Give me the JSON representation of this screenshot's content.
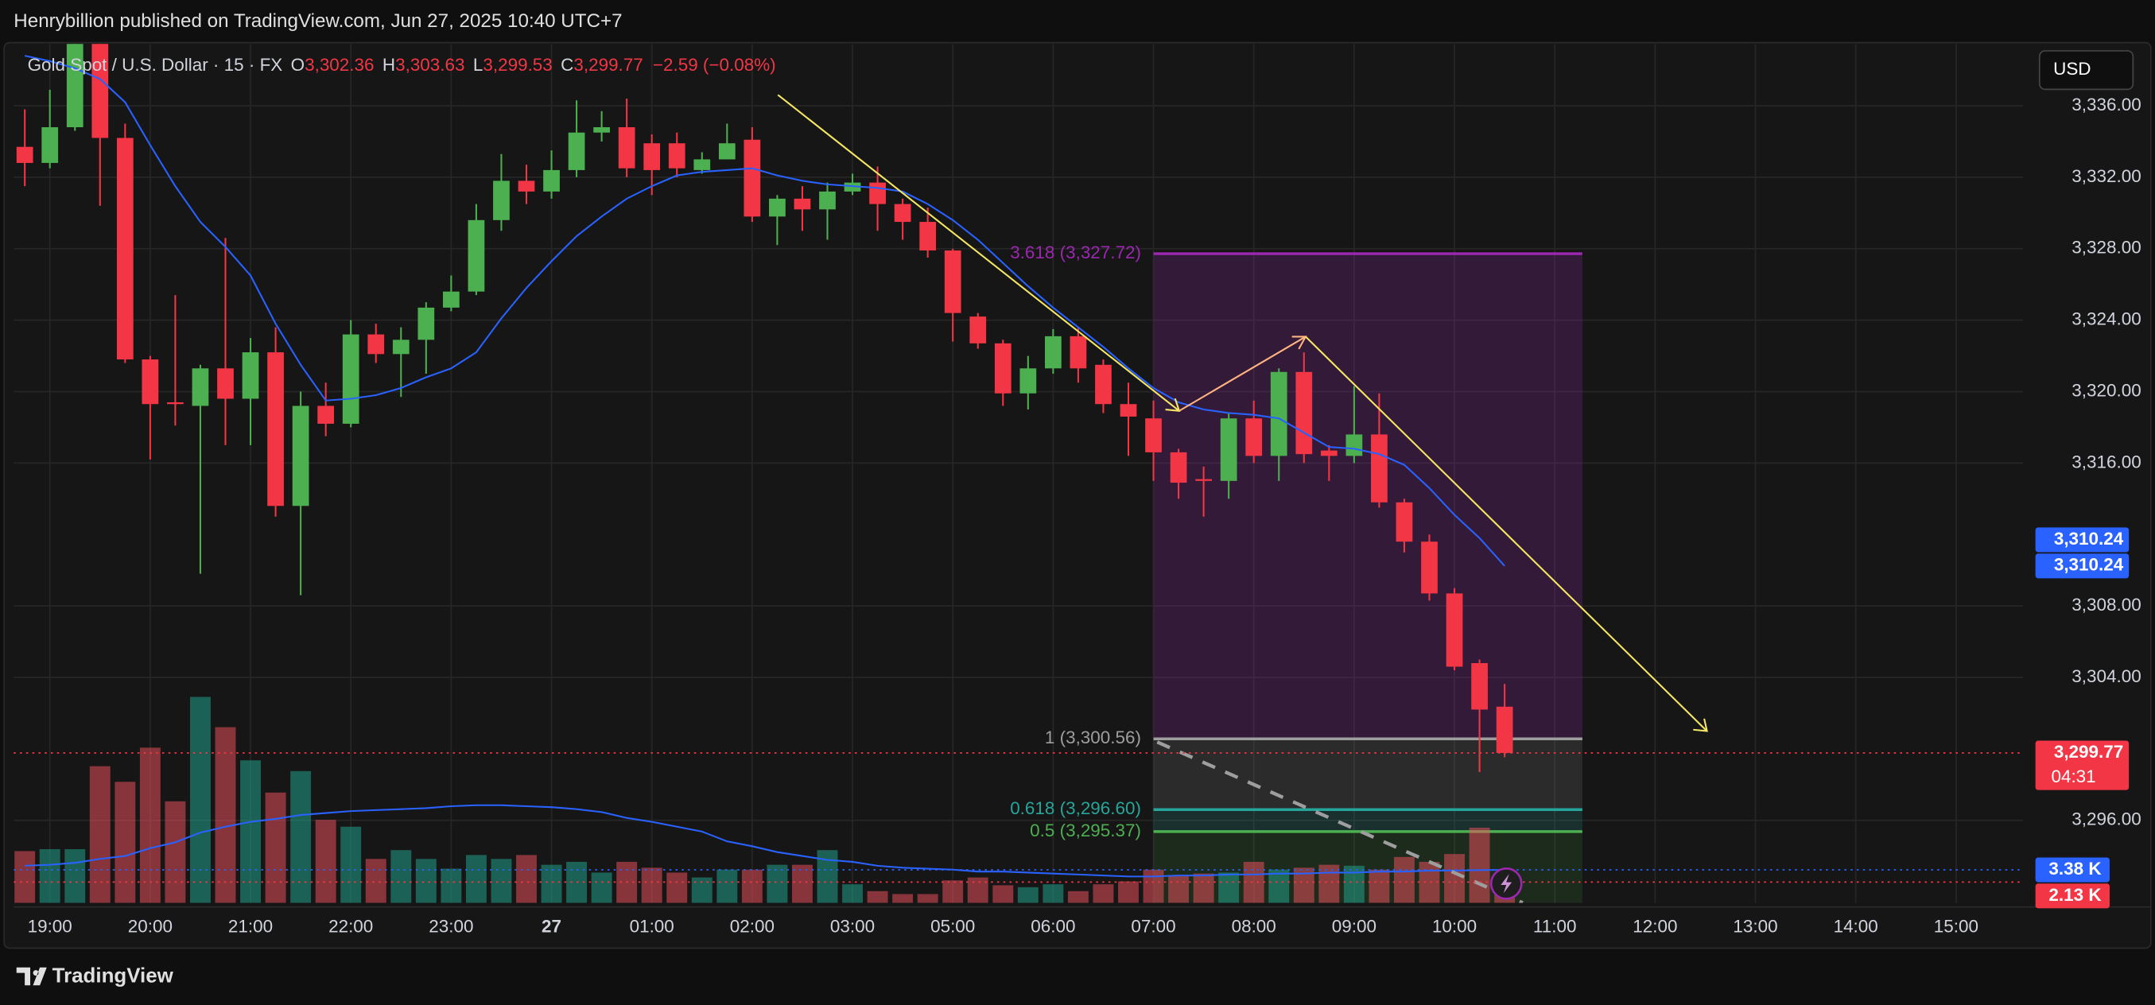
{
  "header": {
    "title": "Henrybillion published on TradingView.com, Jun 27, 2025 10:40 UTC+7"
  },
  "footer": {
    "brand": "TradingView"
  },
  "chart_data": {
    "type": "candlestick",
    "legend": {
      "symbol": "Gold Spot / U.S. Dollar · 15 · FX",
      "items": [
        {
          "key": "O",
          "text": "3,302.36"
        },
        {
          "key": "H",
          "text": "3,303.63"
        },
        {
          "key": "L",
          "text": "3,299.53"
        },
        {
          "key": "C",
          "text": "3,299.77"
        }
      ],
      "change": "−2.59 (−0.08%)"
    },
    "currency": "USD",
    "open": [
      3333.7,
      3332.8,
      3334.8,
      3339.6,
      3334.2,
      3321.8,
      3319.4,
      3319.2,
      3321.3,
      3319.6,
      3322.2,
      3313.6,
      3319.2,
      3318.2,
      3323.2,
      3322.1,
      3322.9,
      3324.7,
      3325.6,
      3329.6,
      3331.8,
      3331.2,
      3332.4,
      3334.5,
      3334.8,
      3333.9,
      3333.9,
      3332.4,
      3333.0,
      3334.1,
      3329.8,
      3330.8,
      3330.2,
      3331.2,
      3331.7,
      3330.5,
      3329.5,
      3327.9,
      3324.2,
      3322.7,
      3319.9,
      3321.3,
      3323.1,
      3321.5,
      3319.3,
      3318.5,
      3316.6,
      3315.1,
      3315.0,
      3318.5,
      3316.4,
      3321.1,
      3316.7,
      3316.4,
      3317.6,
      3313.8,
      3311.6,
      3308.7,
      3304.8,
      3302.36
    ],
    "high": [
      3335.8,
      3336.9,
      3340.2,
      3339.8,
      3335.0,
      3322.0,
      3325.4,
      3321.5,
      3328.6,
      3323.0,
      3323.6,
      3320.0,
      3320.5,
      3324.0,
      3323.8,
      3323.6,
      3325.0,
      3326.5,
      3330.5,
      3333.3,
      3332.7,
      3333.5,
      3336.3,
      3335.7,
      3336.4,
      3334.4,
      3334.5,
      3333.4,
      3335.0,
      3334.8,
      3331.0,
      3331.5,
      3331.7,
      3332.2,
      3332.6,
      3330.8,
      3330.3,
      3328.0,
      3324.4,
      3322.9,
      3322.0,
      3323.5,
      3323.6,
      3321.8,
      3320.5,
      3319.5,
      3316.8,
      3315.8,
      3318.8,
      3319.5,
      3321.3,
      3322.2,
      3317.0,
      3320.3,
      3319.9,
      3314.0,
      3312.0,
      3309.0,
      3305.0,
      3303.63
    ],
    "low": [
      3331.5,
      3332.5,
      3334.6,
      3330.4,
      3321.6,
      3316.2,
      3318.1,
      3309.8,
      3317.0,
      3317.0,
      3313.0,
      3308.6,
      3317.5,
      3318.0,
      3321.6,
      3319.7,
      3321.0,
      3324.5,
      3325.4,
      3329.0,
      3330.5,
      3330.8,
      3332.0,
      3334.0,
      3332.0,
      3331.0,
      3332.0,
      3332.2,
      3333.0,
      3329.5,
      3328.2,
      3329.0,
      3328.5,
      3331.0,
      3329.0,
      3328.5,
      3327.5,
      3322.8,
      3322.4,
      3319.2,
      3319.0,
      3321.0,
      3320.5,
      3318.8,
      3316.4,
      3315.0,
      3314.0,
      3313.0,
      3314.0,
      3316.0,
      3315.0,
      3316.0,
      3315.0,
      3316.0,
      3313.5,
      3311.0,
      3308.3,
      3304.4,
      3298.7,
      3299.53
    ],
    "close": [
      3332.8,
      3334.8,
      3339.6,
      3334.2,
      3321.8,
      3319.3,
      3319.3,
      3321.3,
      3319.6,
      3322.2,
      3313.6,
      3319.2,
      3318.2,
      3323.2,
      3322.1,
      3322.9,
      3324.7,
      3325.6,
      3329.6,
      3331.8,
      3331.2,
      3332.4,
      3334.5,
      3334.8,
      3332.5,
      3332.4,
      3332.5,
      3333.0,
      3333.9,
      3329.8,
      3330.8,
      3330.2,
      3331.2,
      3331.7,
      3330.5,
      3329.5,
      3327.9,
      3324.4,
      3322.7,
      3319.9,
      3321.3,
      3323.1,
      3321.3,
      3319.3,
      3318.6,
      3316.6,
      3314.9,
      3315.0,
      3318.5,
      3316.4,
      3321.1,
      3316.5,
      3316.4,
      3317.6,
      3313.8,
      3311.6,
      3308.7,
      3304.6,
      3302.2,
      3299.77
    ],
    "volume": [
      5.3,
      5.5,
      5.5,
      14.0,
      12.4,
      15.9,
      10.4,
      21.1,
      18.0,
      14.6,
      11.3,
      13.5,
      8.5,
      7.8,
      4.5,
      5.4,
      4.5,
      3.5,
      4.9,
      4.5,
      4.9,
      3.9,
      4.2,
      3.1,
      4.2,
      3.6,
      3.1,
      2.6,
      3.4,
      3.4,
      3.9,
      3.9,
      5.4,
      1.9,
      1.2,
      0.9,
      0.9,
      2.3,
      2.6,
      1.8,
      1.6,
      1.9,
      1.2,
      1.9,
      2.2,
      3.4,
      2.8,
      3.0,
      3.1,
      4.2,
      3.4,
      3.6,
      3.9,
      3.8,
      3.4,
      4.7,
      4.2,
      5.0,
      7.7,
      2.13
    ],
    "ma": {
      "color": "#2962ff",
      "values": [
        3338.8,
        3338.5,
        3338.1,
        3337.5,
        3336.2,
        3333.8,
        3331.5,
        3329.5,
        3328.1,
        3326.5,
        3323.8,
        3321.5,
        3319.5,
        3319.6,
        3319.8,
        3320.2,
        3320.8,
        3321.3,
        3322.2,
        3324.1,
        3325.8,
        3327.3,
        3328.7,
        3329.8,
        3330.8,
        3331.5,
        3332.1,
        3332.3,
        3332.4,
        3332.5,
        3332.1,
        3331.8,
        3331.6,
        3331.5,
        3331.4,
        3331.2,
        3330.5,
        3329.6,
        3328.5,
        3327.2,
        3325.9,
        3324.7,
        3323.6,
        3322.5,
        3321.3,
        3320.2,
        3319.4,
        3319.0,
        3318.8,
        3318.7,
        3318.5,
        3317.7,
        3316.9,
        3316.8,
        3316.5,
        3315.9,
        3314.6,
        3313.1,
        3311.8,
        3310.24
      ]
    },
    "volume_ma": {
      "color": "#2962ff",
      "values": [
        3.8,
        3.9,
        4.1,
        4.5,
        4.8,
        5.6,
        6.2,
        7.2,
        7.8,
        8.3,
        8.6,
        9.0,
        9.2,
        9.4,
        9.5,
        9.6,
        9.7,
        9.9,
        10.0,
        10.0,
        9.9,
        9.8,
        9.6,
        9.3,
        8.7,
        8.3,
        7.8,
        7.3,
        6.3,
        5.8,
        5.2,
        4.8,
        4.4,
        4.2,
        3.8,
        3.6,
        3.5,
        3.4,
        3.2,
        3.2,
        3.1,
        3.0,
        2.9,
        2.8,
        2.7,
        2.7,
        2.8,
        2.8,
        2.9,
        2.9,
        3.0,
        3.0,
        3.1,
        3.1,
        3.2,
        3.2,
        3.3,
        3.3,
        3.35,
        3.38
      ]
    },
    "up_color": "#4caf50",
    "down_color": "#f23645",
    "volume_up_color": "#22ab94",
    "volume_down_color": "#f7525f",
    "xlim": [
      -0.44,
      79.67
    ],
    "xticks": [
      {
        "value": 1,
        "label": "19:00"
      },
      {
        "value": 5,
        "label": "20:00"
      },
      {
        "value": 9,
        "label": "21:00"
      },
      {
        "value": 13,
        "label": "22:00"
      },
      {
        "value": 17,
        "label": "23:00"
      },
      {
        "value": 21,
        "label": "27"
      },
      {
        "value": 25,
        "label": "01:00"
      },
      {
        "value": 29,
        "label": "02:00"
      },
      {
        "value": 33,
        "label": "03:00"
      },
      {
        "value": 37,
        "label": "05:00"
      },
      {
        "value": 41,
        "label": "06:00"
      },
      {
        "value": 45,
        "label": "07:00"
      },
      {
        "value": 49,
        "label": "08:00"
      },
      {
        "value": 53,
        "label": "09:00"
      },
      {
        "value": 57,
        "label": "10:00"
      },
      {
        "value": 61,
        "label": "11:00"
      },
      {
        "value": 65,
        "label": "12:00"
      },
      {
        "value": 69,
        "label": "13:00"
      },
      {
        "value": 73,
        "label": "14:00"
      },
      {
        "value": 77,
        "label": "15:00"
      }
    ],
    "ylim": [
      3291.38,
      3339.46
    ],
    "yticks": [
      {
        "value": 3296,
        "label": "3,296.00"
      },
      {
        "value": 3304,
        "label": "3,304.00"
      },
      {
        "value": 3308,
        "label": "3,308.00"
      },
      {
        "value": 3316,
        "label": "3,316.00"
      },
      {
        "value": 3320,
        "label": "3,320.00"
      },
      {
        "value": 3324,
        "label": "3,324.00"
      },
      {
        "value": 3328,
        "label": "3,328.00"
      },
      {
        "value": 3332,
        "label": "3,332.00"
      },
      {
        "value": 3336,
        "label": "3,336.00"
      }
    ],
    "volume_ylim": [
      0,
      88
    ],
    "grid": true,
    "fib": {
      "x": [
        45,
        62.1
      ],
      "levels": [
        {
          "label": "3.618 (3,327.72)",
          "value": 3327.72,
          "color": "#9c27b0"
        },
        {
          "label": "1 (3,300.56)",
          "value": 3300.56,
          "color": "#9e9e9e"
        },
        {
          "label": "0.618 (3,296.60)",
          "value": 3296.6,
          "color": "#26a69a"
        },
        {
          "label": "0.5 (3,295.37)",
          "value": 3295.37,
          "color": "#4caf50"
        }
      ]
    },
    "price_labels": [
      {
        "text": "3,310.24",
        "value": 3310.24,
        "color": "#2962ff",
        "offset": -1
      },
      {
        "text": "3,310.24",
        "value": 3310.24,
        "color": "#2962ff",
        "offset": 0
      },
      {
        "text": "3,299.77",
        "value": 3299.77,
        "color": "#f23645",
        "sub": "04:31",
        "dotted": true
      }
    ],
    "volume_labels": [
      {
        "text": "3.38 K",
        "value": 3.38,
        "color": "#2962ff",
        "dotted": true
      },
      {
        "text": "2.13 K",
        "value": 2.13,
        "color": "#f23645",
        "dotted": true
      }
    ]
  }
}
